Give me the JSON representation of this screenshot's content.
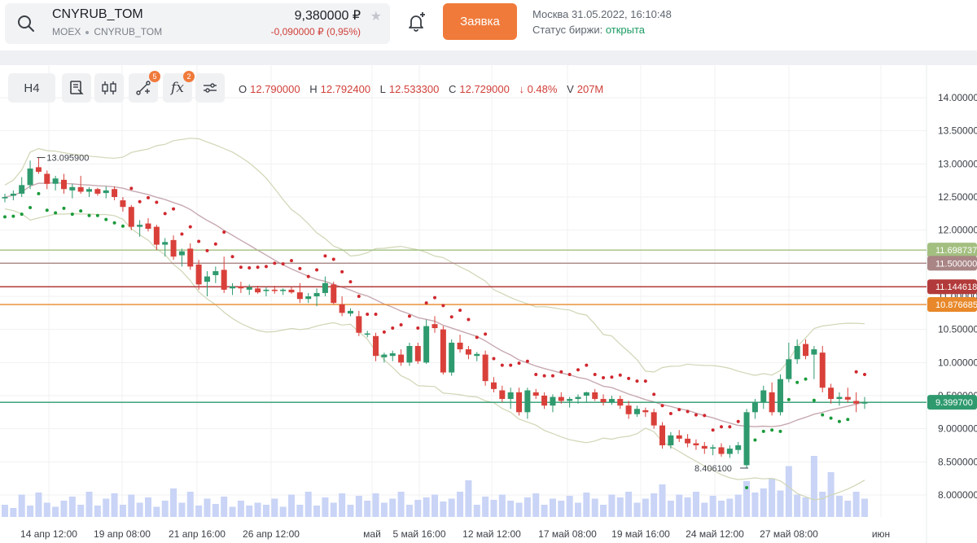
{
  "instrument": {
    "ticker": "CNYRUB_TOM",
    "exchange": "MOEX",
    "sub_ticker": "CNYRUB_TOM",
    "price": "9,380000 ₽",
    "change": "-0,090000 ₽ (0,95%)"
  },
  "order_button": "Заявка",
  "exchange_info": {
    "datetime": "Москва 31.05.2022, 16:10:48",
    "status_label": "Статус биржи:",
    "status_value": "открыта"
  },
  "toolbar": {
    "timeframe": "H4",
    "drawings_badge": "5",
    "indicators_badge": "2"
  },
  "ohlc": {
    "o_label": "O",
    "o": "12.790000",
    "h_label": "H",
    "h": "12.792400",
    "l_label": "L",
    "l": "12.533300",
    "c_label": "C",
    "c": "12.729000",
    "change": "↓ 0.48%",
    "v_label": "V",
    "v": "207M"
  },
  "colors": {
    "up": "#2e9a6e",
    "down": "#d9403a",
    "accent": "#f07a3a",
    "sar": "#d0282e",
    "sar_up": "#1a9a3a",
    "volume": "#c9d4f6"
  },
  "chart_data": {
    "type": "candlestick",
    "y_ticks": [
      "14.000000",
      "13.500000",
      "13.000000",
      "12.500000",
      "12.000000",
      "11.500000",
      "11.000000",
      "10.500000",
      "10.000000",
      "9.500000",
      "9.000000",
      "8.500000",
      "8.000000"
    ],
    "ylim": [
      7.8,
      14.2
    ],
    "x_labels": [
      "14 апр 12:00",
      "19 апр 08:00",
      "21 апр 16:00",
      "26 апр 12:00",
      "май",
      "5 май 16:00",
      "12 май 12:00",
      "17 май 08:00",
      "19 май 16:00",
      "24 май 12:00",
      "27 май 08:00",
      "июн"
    ],
    "price_levels": [
      {
        "value": 11.698737,
        "label": "11.698737",
        "color": "#a3bf80"
      },
      {
        "value": 11.5,
        "label": "11.500000",
        "color": "#a98585"
      },
      {
        "value": 11.144618,
        "label": "11.144618",
        "color": "#b33a3a"
      },
      {
        "value": 10.876685,
        "label": "10.876685",
        "color": "#e8882a"
      },
      {
        "value": 9.3997,
        "label": "9.399700",
        "color": "#2e9a6e"
      }
    ],
    "annotations": [
      {
        "label": "13.095900",
        "value": 13.0959
      },
      {
        "label": "8.406100",
        "value": 8.4061
      }
    ],
    "candles": [
      [
        12.48,
        12.55,
        12.42,
        12.5
      ],
      [
        12.52,
        12.6,
        12.45,
        12.55
      ],
      [
        12.55,
        12.8,
        12.5,
        12.68
      ],
      [
        12.68,
        13.05,
        12.62,
        12.93
      ],
      [
        12.95,
        13.1,
        12.85,
        12.88
      ],
      [
        12.85,
        12.9,
        12.62,
        12.7
      ],
      [
        12.7,
        12.82,
        12.6,
        12.78
      ],
      [
        12.76,
        12.85,
        12.55,
        12.62
      ],
      [
        12.6,
        12.7,
        12.48,
        12.65
      ],
      [
        12.65,
        12.82,
        12.55,
        12.58
      ],
      [
        12.58,
        12.65,
        12.5,
        12.62
      ],
      [
        12.62,
        12.64,
        12.52,
        12.55
      ],
      [
        12.56,
        12.66,
        12.48,
        12.6
      ],
      [
        12.62,
        12.66,
        12.45,
        12.5
      ],
      [
        12.45,
        12.5,
        12.28,
        12.35
      ],
      [
        12.35,
        12.38,
        12.0,
        12.05
      ],
      [
        12.05,
        12.15,
        11.9,
        12.08
      ],
      [
        12.1,
        12.18,
        11.98,
        12.02
      ],
      [
        12.05,
        12.08,
        11.7,
        11.78
      ],
      [
        11.78,
        11.88,
        11.6,
        11.82
      ],
      [
        11.85,
        11.92,
        11.55,
        11.6
      ],
      [
        11.62,
        11.72,
        11.45,
        11.68
      ],
      [
        11.72,
        11.8,
        11.4,
        11.45
      ],
      [
        11.48,
        11.55,
        11.1,
        11.18
      ],
      [
        11.22,
        11.38,
        11.0,
        11.3
      ],
      [
        11.32,
        11.45,
        11.2,
        11.38
      ],
      [
        11.4,
        11.6,
        11.05,
        11.1
      ],
      [
        11.12,
        11.2,
        11.02,
        11.15
      ],
      [
        11.15,
        11.22,
        11.05,
        11.12
      ],
      [
        11.1,
        11.18,
        11.02,
        11.14
      ],
      [
        11.12,
        11.16,
        11.04,
        11.06
      ],
      [
        11.08,
        11.14,
        11.0,
        11.1
      ],
      [
        11.1,
        11.16,
        11.04,
        11.08
      ],
      [
        11.08,
        11.12,
        11.02,
        11.1
      ],
      [
        11.1,
        11.14,
        11.04,
        11.06
      ],
      [
        11.06,
        11.2,
        10.9,
        10.96
      ],
      [
        10.96,
        11.05,
        10.9,
        11.0
      ],
      [
        11.0,
        11.12,
        10.85,
        11.05
      ],
      [
        11.05,
        11.3,
        11.0,
        11.2
      ],
      [
        11.18,
        11.22,
        10.88,
        10.9
      ],
      [
        10.88,
        11.0,
        10.7,
        10.75
      ],
      [
        10.74,
        10.82,
        10.7,
        10.78
      ],
      [
        10.7,
        10.78,
        10.4,
        10.45
      ],
      [
        10.42,
        10.48,
        10.38,
        10.44
      ],
      [
        10.4,
        10.45,
        10.02,
        10.1
      ],
      [
        10.08,
        10.15,
        10.0,
        10.12
      ],
      [
        10.1,
        10.18,
        10.02,
        10.14
      ],
      [
        10.12,
        10.2,
        9.95,
        10.0
      ],
      [
        10.0,
        10.3,
        9.95,
        10.25
      ],
      [
        10.25,
        10.3,
        9.98,
        10.02
      ],
      [
        10.0,
        10.65,
        9.98,
        10.55
      ],
      [
        10.58,
        10.7,
        10.45,
        10.52
      ],
      [
        10.5,
        10.55,
        9.82,
        9.85
      ],
      [
        9.85,
        10.35,
        9.8,
        10.3
      ],
      [
        10.3,
        10.42,
        10.15,
        10.2
      ],
      [
        10.2,
        10.25,
        10.05,
        10.12
      ],
      [
        10.1,
        10.16,
        10.02,
        10.13
      ],
      [
        10.12,
        10.18,
        9.65,
        9.72
      ],
      [
        9.7,
        9.78,
        9.55,
        9.6
      ],
      [
        9.58,
        9.65,
        9.4,
        9.45
      ],
      [
        9.45,
        9.62,
        9.3,
        9.55
      ],
      [
        9.55,
        9.62,
        9.2,
        9.25
      ],
      [
        9.25,
        9.62,
        9.15,
        9.58
      ],
      [
        9.55,
        9.6,
        9.45,
        9.5
      ],
      [
        9.5,
        9.55,
        9.3,
        9.35
      ],
      [
        9.35,
        9.52,
        9.25,
        9.48
      ],
      [
        9.48,
        9.55,
        9.38,
        9.42
      ],
      [
        9.42,
        9.48,
        9.32,
        9.45
      ],
      [
        9.45,
        9.52,
        9.38,
        9.48
      ],
      [
        9.5,
        9.56,
        9.4,
        9.55
      ],
      [
        9.55,
        9.6,
        9.42,
        9.45
      ],
      [
        9.45,
        9.52,
        9.35,
        9.4
      ],
      [
        9.4,
        9.5,
        9.36,
        9.45
      ],
      [
        9.45,
        9.5,
        9.3,
        9.35
      ],
      [
        9.35,
        9.42,
        9.15,
        9.22
      ],
      [
        9.22,
        9.35,
        9.18,
        9.3
      ],
      [
        9.28,
        9.32,
        9.18,
        9.25
      ],
      [
        9.25,
        9.3,
        9.0,
        9.05
      ],
      [
        9.05,
        9.1,
        8.7,
        8.75
      ],
      [
        8.75,
        8.95,
        8.7,
        8.9
      ],
      [
        8.9,
        8.98,
        8.8,
        8.85
      ],
      [
        8.85,
        8.92,
        8.72,
        8.78
      ],
      [
        8.78,
        8.84,
        8.68,
        8.75
      ],
      [
        8.74,
        8.8,
        8.62,
        8.7
      ],
      [
        8.7,
        8.76,
        8.6,
        8.72
      ],
      [
        8.72,
        8.78,
        8.58,
        8.62
      ],
      [
        8.62,
        8.75,
        8.56,
        8.7
      ],
      [
        8.68,
        8.8,
        8.62,
        8.75
      ],
      [
        8.45,
        9.3,
        8.41,
        9.25
      ],
      [
        9.25,
        9.45,
        9.15,
        9.4
      ],
      [
        9.4,
        9.65,
        9.3,
        9.58
      ],
      [
        9.55,
        9.7,
        9.2,
        9.25
      ],
      [
        9.25,
        9.82,
        9.2,
        9.75
      ],
      [
        9.75,
        10.3,
        9.7,
        10.05
      ],
      [
        10.05,
        10.35,
        9.98,
        10.25
      ],
      [
        10.28,
        10.35,
        10.05,
        10.1
      ],
      [
        10.12,
        10.25,
        9.75,
        10.2
      ],
      [
        10.15,
        10.25,
        9.55,
        9.62
      ],
      [
        9.62,
        9.68,
        9.38,
        9.45
      ],
      [
        9.45,
        9.55,
        9.35,
        9.48
      ],
      [
        9.48,
        9.62,
        9.4,
        9.44
      ],
      [
        9.42,
        9.55,
        9.25,
        9.38
      ],
      [
        9.38,
        9.48,
        9.3,
        9.4
      ]
    ],
    "volumes": [
      0.3,
      0.22,
      0.55,
      0.28,
      0.6,
      0.35,
      0.25,
      0.4,
      0.5,
      0.3,
      0.62,
      0.28,
      0.45,
      0.58,
      0.3,
      0.55,
      0.35,
      0.48,
      0.25,
      0.4,
      0.7,
      0.35,
      0.62,
      0.28,
      0.45,
      0.32,
      0.5,
      0.25,
      0.4,
      0.28,
      0.35,
      0.3,
      0.45,
      0.25,
      0.55,
      0.3,
      0.62,
      0.28,
      0.48,
      0.35,
      0.58,
      0.3,
      0.52,
      0.4,
      0.58,
      0.35,
      0.45,
      0.62,
      0.3,
      0.42,
      0.48,
      0.55,
      0.38,
      0.45,
      0.62,
      0.9,
      0.3,
      0.5,
      0.42,
      0.55,
      0.4,
      0.35,
      0.48,
      0.58,
      0.3,
      0.45,
      0.4,
      0.52,
      0.35,
      0.6,
      0.45,
      0.3,
      0.55,
      0.48,
      0.62,
      0.35,
      0.45,
      0.58,
      0.8,
      0.4,
      0.55,
      0.48,
      0.62,
      0.35,
      0.52,
      0.4,
      0.45,
      0.55,
      0.88,
      0.6,
      0.7,
      0.95,
      0.65,
      1.25,
      0.55,
      0.48,
      1.5,
      0.62,
      1.1,
      0.52,
      0.4,
      0.62,
      0.45
    ]
  }
}
